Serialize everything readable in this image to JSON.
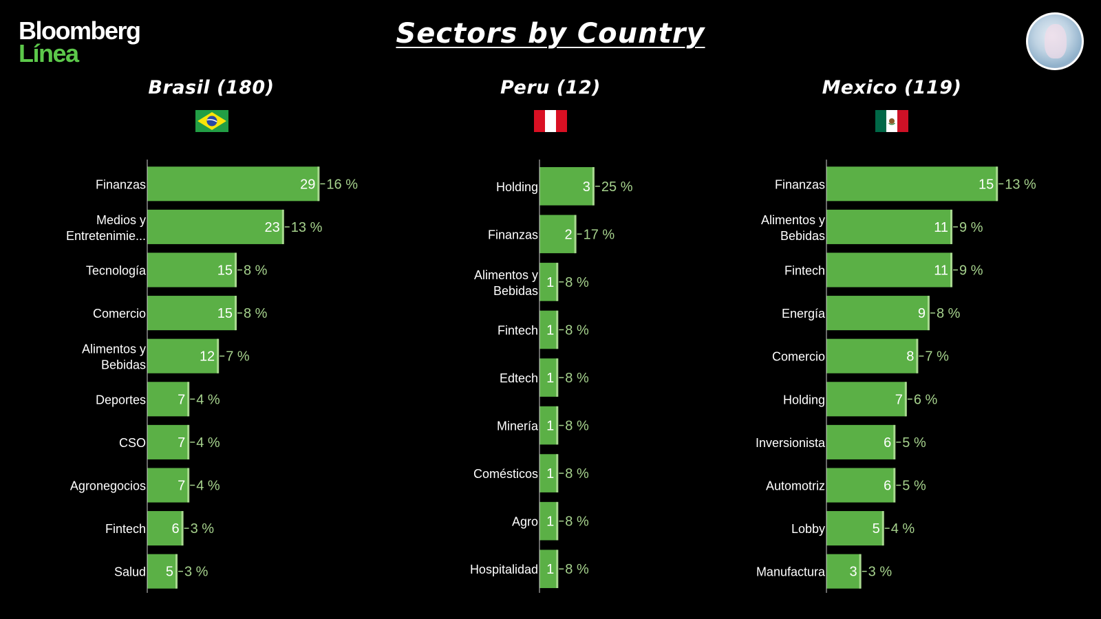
{
  "brand": {
    "line1": "Bloomberg",
    "line2": "Línea"
  },
  "title": "Sectors by Country",
  "colors": {
    "bar": "#5bb046",
    "bar_edge": "#a8d98f",
    "pct": "#a6d28d",
    "background": "#000000"
  },
  "icons": {
    "avatar": "statue-avatar-icon",
    "brasil_flag": "brazil-flag-icon",
    "peru_flag": "peru-flag-icon",
    "mexico_flag": "mexico-flag-icon"
  },
  "chart_data": [
    {
      "type": "bar",
      "orientation": "horizontal",
      "title": "Brasil (180)",
      "categories": [
        "Finanzas",
        "Medios y Entretenimie...",
        "Tecnología",
        "Comercio",
        "Alimentos y Bebidas",
        "Deportes",
        "CSO",
        "Agronegocios",
        "Fintech",
        "Salud"
      ],
      "values": [
        29,
        23,
        15,
        15,
        12,
        7,
        7,
        7,
        6,
        5
      ],
      "percent_labels": [
        "16 %",
        "13 %",
        "8 %",
        "8 %",
        "7 %",
        "4 %",
        "4 %",
        "4 %",
        "3 %",
        "3 %"
      ]
    },
    {
      "type": "bar",
      "orientation": "horizontal",
      "title": "Peru (12)",
      "categories": [
        "Holding",
        "Finanzas",
        "Alimentos y Bebidas",
        "Fintech",
        "Edtech",
        "Minería",
        "Comésticos",
        "Agro",
        "Hospitalidad"
      ],
      "values": [
        3,
        2,
        1,
        1,
        1,
        1,
        1,
        1,
        1
      ],
      "percent_labels": [
        "25 %",
        "17 %",
        "8 %",
        "8 %",
        "8 %",
        "8 %",
        "8 %",
        "8 %",
        "8 %"
      ]
    },
    {
      "type": "bar",
      "orientation": "horizontal",
      "title": "Mexico (119)",
      "categories": [
        "Finanzas",
        "Alimentos y Bebidas",
        "Fintech",
        "Energía",
        "Comercio",
        "Holding",
        "Inversionista",
        "Automotriz",
        "Lobby",
        "Manufactura"
      ],
      "values": [
        15,
        11,
        11,
        9,
        8,
        7,
        6,
        6,
        5,
        3
      ],
      "percent_labels": [
        "13 %",
        "9 %",
        "9 %",
        "8 %",
        "7 %",
        "6 %",
        "5 %",
        "5 %",
        "4 %",
        "3 %"
      ]
    }
  ]
}
